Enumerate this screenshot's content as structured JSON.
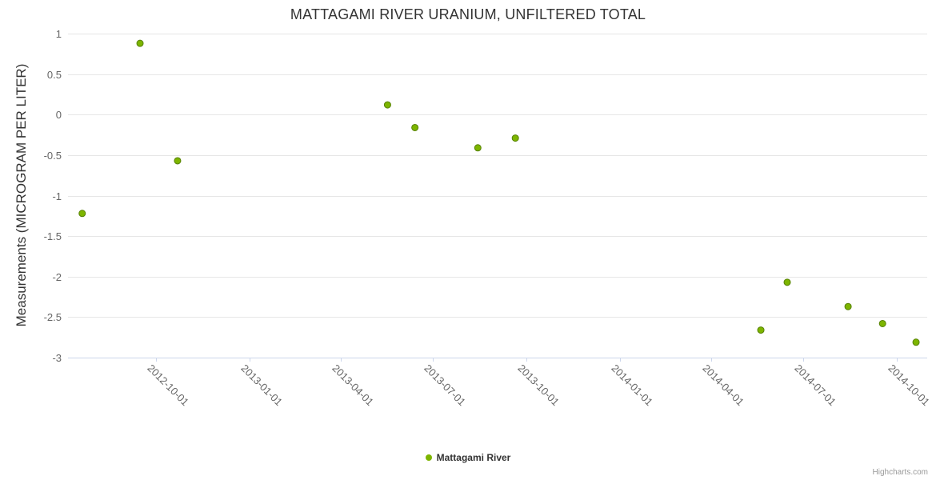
{
  "credits": "Highcharts.com",
  "chart_data": {
    "type": "scatter",
    "title": "MATTAGAMI RIVER URANIUM, UNFILTERED TOTAL",
    "xlabel": "",
    "ylabel": "Measurements (MICROGRAM PER LITER)",
    "ylim": [
      -3,
      1
    ],
    "y_ticks": [
      1,
      0.5,
      0,
      -0.5,
      -1,
      -1.5,
      -2,
      -2.5,
      -3
    ],
    "x_ticks": [
      "2012-10-01",
      "2013-01-01",
      "2013-04-01",
      "2013-07-01",
      "2013-10-01",
      "2014-01-01",
      "2014-04-01",
      "2014-07-01",
      "2014-10-01"
    ],
    "x_range": [
      "2012-07-06",
      "2014-10-31"
    ],
    "grid": "horizontal",
    "legend_position": "bottom",
    "series": [
      {
        "name": "Mattagami River",
        "color": "#7db500",
        "marker_stroke": "#558000",
        "points": [
          {
            "x": "2012-07-20",
            "y": -1.22
          },
          {
            "x": "2012-09-15",
            "y": 0.88
          },
          {
            "x": "2012-10-22",
            "y": -0.57
          },
          {
            "x": "2013-05-17",
            "y": 0.12
          },
          {
            "x": "2013-06-13",
            "y": -0.16
          },
          {
            "x": "2013-08-14",
            "y": -0.41
          },
          {
            "x": "2013-09-20",
            "y": -0.29
          },
          {
            "x": "2014-05-20",
            "y": -2.66
          },
          {
            "x": "2014-06-15",
            "y": -2.07
          },
          {
            "x": "2014-08-14",
            "y": -2.37
          },
          {
            "x": "2014-09-17",
            "y": -2.58
          },
          {
            "x": "2014-10-20",
            "y": -2.81
          }
        ]
      }
    ]
  }
}
